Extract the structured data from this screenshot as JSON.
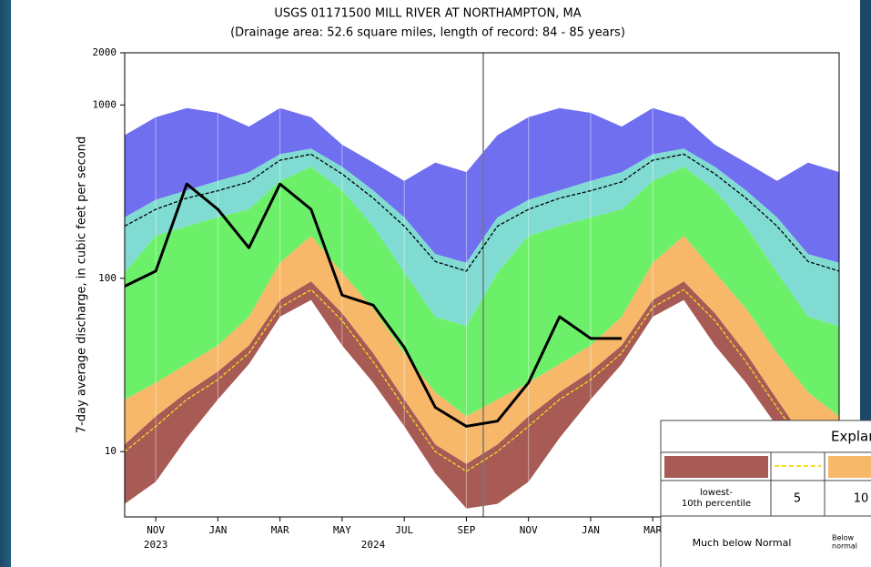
{
  "chart_data": {
    "type": "band",
    "title": "USGS 01171500 MILL RIVER AT NORTHAMPTON, MA",
    "subtitle": "(Drainage area: 52.6 square miles, length of record: 84 - 85 years)",
    "y_label": "7-day average discharge, in cubic feet per second",
    "log_scale": true,
    "ylim": [
      4.2,
      2000
    ],
    "yticks": [
      10,
      100,
      1000,
      2000
    ],
    "grid": true,
    "x": [
      "2023-10",
      "2023-11",
      "2023-12",
      "2024-01",
      "2024-02",
      "2024-03",
      "2024-04",
      "2024-05",
      "2024-06",
      "2024-07",
      "2024-08",
      "2024-09",
      "2024-10",
      "2024-11",
      "2024-12",
      "2025-01",
      "2025-02",
      "2025-03",
      "2025-04",
      "2025-05",
      "2025-06",
      "2025-07",
      "2025-08",
      "2025-09"
    ],
    "xticks": [
      {
        "value": "2023-11",
        "label": "NOV"
      },
      {
        "value": "2024-01",
        "label": "JAN"
      },
      {
        "value": "2024-03",
        "label": "MAR"
      },
      {
        "value": "2024-05",
        "label": "MAY"
      },
      {
        "value": "2024-07",
        "label": "JUL"
      },
      {
        "value": "2024-09",
        "label": "SEP"
      },
      {
        "value": "2024-11",
        "label": "NOV"
      },
      {
        "value": "2025-01",
        "label": "JAN"
      },
      {
        "value": "2025-03",
        "label": "MAR"
      }
    ],
    "year_labels": [
      {
        "value": "2023-11",
        "label": "2023"
      },
      {
        "value": "2024-06",
        "label": "2024"
      }
    ],
    "series": [
      {
        "values": [
          5,
          6.7,
          12,
          20,
          32,
          60,
          75,
          41,
          25,
          14,
          7.5,
          4.7,
          5,
          6.7,
          12,
          20,
          32,
          60,
          75,
          41,
          25,
          14,
          7.5,
          4.7
        ]
      },
      {
        "values": [
          11,
          16,
          22,
          29,
          41,
          75,
          96,
          63,
          37,
          20,
          11,
          8.5,
          11,
          16,
          22,
          29,
          41,
          75,
          96,
          63,
          37,
          20,
          11,
          8.5
        ]
      },
      {
        "color": "#f0e020",
        "dashed": true,
        "values": [
          10,
          14,
          20,
          26,
          37,
          68,
          86,
          57,
          33,
          18,
          10,
          7.7,
          10,
          14,
          20,
          26,
          37,
          68,
          86,
          57,
          33,
          18,
          10,
          7.7
        ]
      },
      {
        "values": [
          20,
          25,
          32,
          41,
          60,
          123,
          176,
          108,
          67,
          37,
          22,
          16,
          20,
          25,
          32,
          41,
          60,
          123,
          176,
          108,
          67,
          37,
          22,
          16
        ]
      },
      {
        "values": [
          108,
          176,
          200,
          225,
          250,
          365,
          440,
          322,
          200,
          108,
          60,
          53,
          108,
          176,
          200,
          225,
          250,
          365,
          440,
          322,
          200,
          108,
          60,
          53
        ]
      },
      {
        "values": [
          225,
          284,
          322,
          365,
          410,
          520,
          560,
          440,
          322,
          225,
          138,
          123,
          225,
          284,
          322,
          365,
          410,
          520,
          560,
          440,
          322,
          225,
          138,
          123
        ]
      },
      {
        "values": [
          670,
          850,
          960,
          900,
          750,
          960,
          850,
          590,
          465,
          365,
          465,
          410,
          670,
          850,
          960,
          900,
          750,
          960,
          850,
          590,
          465,
          365,
          465,
          410
        ]
      },
      {
        "color": "#000000",
        "dashed": true,
        "values": [
          200,
          250,
          290,
          320,
          360,
          480,
          520,
          400,
          290,
          200,
          125,
          110,
          200,
          250,
          290,
          320,
          360,
          480,
          520,
          400,
          290,
          200,
          125,
          110
        ]
      },
      {
        "color": "#000000",
        "width": 3,
        "values": [
          90,
          110,
          350,
          250,
          150,
          350,
          250,
          80,
          70,
          40,
          18,
          14,
          15,
          25,
          60,
          45,
          45,
          null,
          null,
          null,
          null,
          null,
          null,
          null
        ]
      }
    ],
    "bands": [
      {
        "lower": 0,
        "upper": 1,
        "color": "#a85a55"
      },
      {
        "lower": 1,
        "upper": 3,
        "color": "#f7b86a"
      },
      {
        "lower": 3,
        "upper": 4,
        "color": "#6cf06a"
      },
      {
        "lower": 4,
        "upper": 5,
        "color": "#80dcd2"
      },
      {
        "lower": 5,
        "upper": 6,
        "color": "#6f6ff0"
      }
    ],
    "legend": {
      "title": "Explanation",
      "labels": [
        [
          "lowest-",
          "10th percentile"
        ],
        [
          "5"
        ],
        [
          "10"
        ]
      ],
      "classes": [
        [
          "Much below Normal"
        ],
        [
          "Below",
          "normal"
        ]
      ]
    }
  }
}
